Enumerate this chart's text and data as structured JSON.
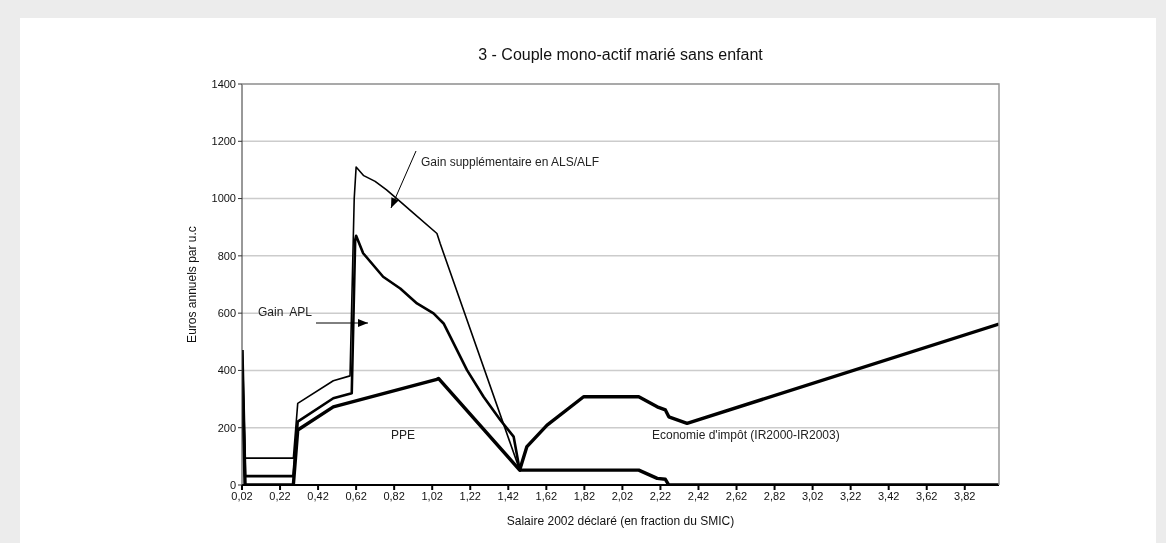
{
  "chart_data": {
    "type": "line",
    "title": "3 - Couple mono-actif marié sans enfant",
    "xlabel": "Salaire 2002 déclaré (en fraction du SMIC)",
    "ylabel": "Euros annuels par u.c",
    "xlim": [
      0.02,
      4.0
    ],
    "xticks": [
      {
        "value": 0.02,
        "label": "0,02"
      },
      {
        "value": 0.22,
        "label": "0,22"
      },
      {
        "value": 0.42,
        "label": "0,42"
      },
      {
        "value": 0.62,
        "label": "0,62"
      },
      {
        "value": 0.82,
        "label": "0,82"
      },
      {
        "value": 1.02,
        "label": "1,02"
      },
      {
        "value": 1.22,
        "label": "1,22"
      },
      {
        "value": 1.42,
        "label": "1,42"
      },
      {
        "value": 1.62,
        "label": "1,62"
      },
      {
        "value": 1.82,
        "label": "1,82"
      },
      {
        "value": 2.02,
        "label": "2,02"
      },
      {
        "value": 2.22,
        "label": "2,22"
      },
      {
        "value": 2.42,
        "label": "2,42"
      },
      {
        "value": 2.62,
        "label": "2,62"
      },
      {
        "value": 2.82,
        "label": "2,82"
      },
      {
        "value": 3.02,
        "label": "3,02"
      },
      {
        "value": 3.22,
        "label": "3,22"
      },
      {
        "value": 3.42,
        "label": "3,42"
      },
      {
        "value": 3.62,
        "label": "3,62"
      },
      {
        "value": 3.82,
        "label": "3,82"
      }
    ],
    "ylim": [
      0,
      1400
    ],
    "yticks": [
      0,
      200,
      400,
      600,
      800,
      1000,
      1200,
      1400
    ],
    "grid": "y",
    "marker": "none",
    "line_style": "solid",
    "legend": false,
    "series": [
      {
        "color": "#000000",
        "x": [
          0.02,
          0.036,
          0.29,
          0.313,
          0.5,
          0.588,
          0.61,
          0.62,
          0.66,
          0.72,
          0.78,
          0.852,
          0.92,
          1.045,
          1.062,
          1.48
        ],
        "values": [
          471,
          94,
          94,
          285,
          364,
          381,
          1000,
          1110,
          1080,
          1060,
          1030,
          989,
          950,
          878,
          843,
          52
        ]
      },
      {
        "color": "#000000",
        "x": [
          0.02,
          0.036,
          0.29,
          0.313,
          0.5,
          0.597,
          0.615,
          0.62,
          0.657,
          0.762,
          0.852,
          0.94,
          1.027,
          1.08,
          1.115,
          1.203,
          1.29,
          1.378,
          1.448,
          1.48
        ],
        "values": [
          471,
          31,
          31,
          221,
          303,
          320,
          855,
          870,
          809,
          727,
          686,
          634,
          599,
          564,
          518,
          401,
          308,
          227,
          169,
          52
        ]
      },
      {
        "color": "#000000",
        "x": [
          0.02,
          0.036,
          0.29,
          0.313,
          0.5,
          1.0,
          1.045,
          1.053,
          1.48,
          1.518,
          1.624,
          1.816,
          2.106,
          2.203,
          2.246,
          2.264,
          2.36,
          4.0
        ],
        "values": [
          471,
          0,
          0,
          192,
          273,
          361,
          369,
          372,
          52,
          134,
          209,
          308,
          308,
          273,
          262,
          238,
          215,
          562
        ]
      },
      {
        "color": "#000000",
        "x": [
          1.48,
          2.106,
          2.203,
          2.246,
          2.264,
          4.0
        ],
        "values": [
          52,
          52,
          23,
          20,
          0,
          0
        ]
      }
    ],
    "annotations": [
      "Gain supplémentaire en ALS/ALF",
      "Gain  APL",
      "PPE",
      "Economie d'impôt (IR2000-IR2003)"
    ]
  }
}
